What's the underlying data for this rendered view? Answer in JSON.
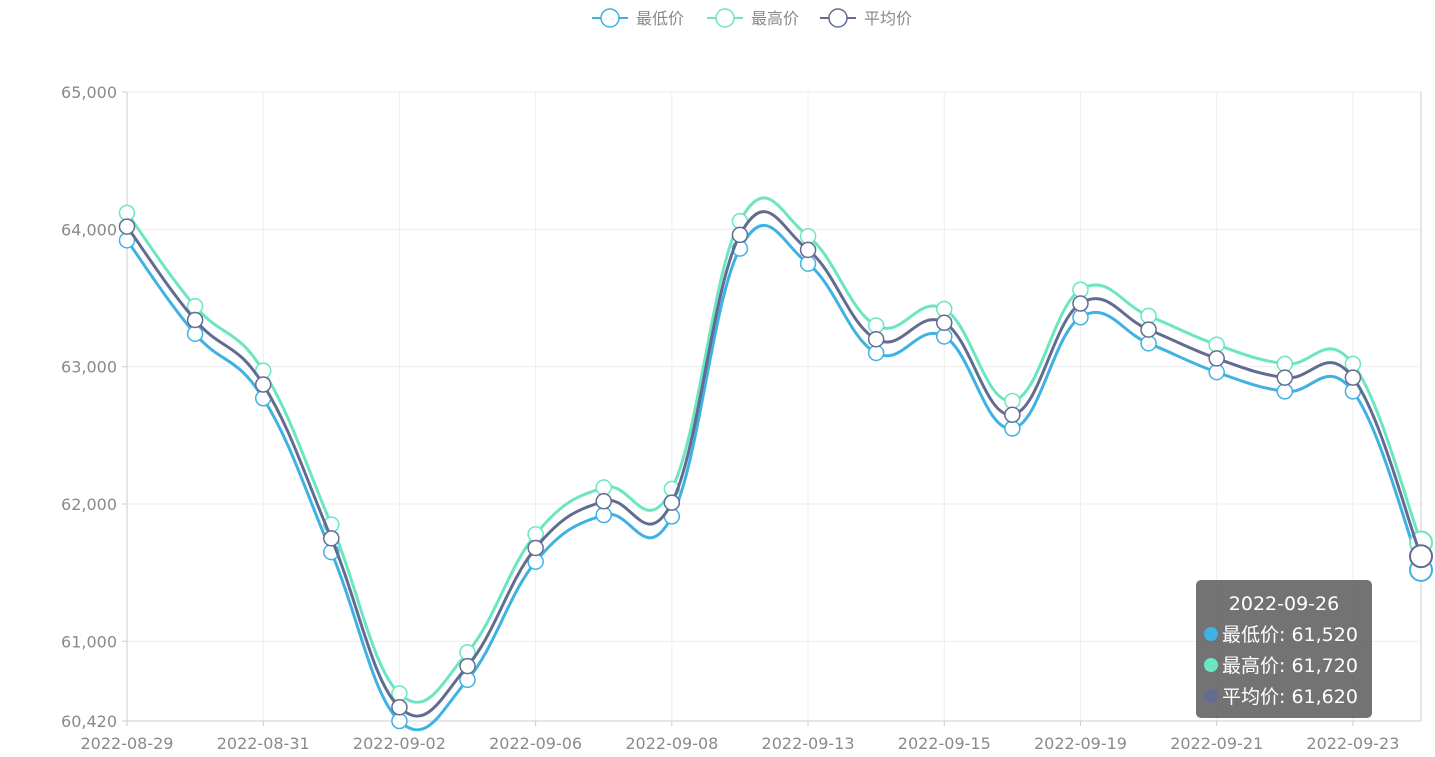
{
  "legend": [
    {
      "name": "最低价",
      "color": "#3fb1e3"
    },
    {
      "name": "最高价",
      "color": "#6be6c1"
    },
    {
      "name": "平均价",
      "color": "#626c91"
    }
  ],
  "chart_data": {
    "type": "line",
    "smooth": true,
    "x": [
      "2022-08-29",
      "2022-08-30",
      "2022-08-31",
      "2022-09-01",
      "2022-09-02",
      "2022-09-05",
      "2022-09-06",
      "2022-09-07",
      "2022-09-08",
      "2022-09-09",
      "2022-09-13",
      "2022-09-14",
      "2022-09-15",
      "2022-09-16",
      "2022-09-19",
      "2022-09-20",
      "2022-09-21",
      "2022-09-22",
      "2022-09-23",
      "2022-09-26"
    ],
    "x_tick_labels": [
      "2022-08-29",
      "2022-08-31",
      "2022-09-02",
      "2022-09-06",
      "2022-09-08",
      "2022-09-13",
      "2022-09-15",
      "2022-09-19",
      "2022-09-21",
      "2022-09-23"
    ],
    "y_tick_labels": [
      "65,000",
      "64,000",
      "63,000",
      "62,000",
      "61,000",
      "60,420"
    ],
    "ylim": [
      60420,
      65000
    ],
    "grid": true,
    "legend_position": "top-center",
    "series": [
      {
        "name": "最低价",
        "color": "#3fb1e3",
        "values": [
          63920,
          63240,
          62770,
          61650,
          60420,
          60720,
          61580,
          61920,
          61910,
          63860,
          63750,
          63100,
          63220,
          62550,
          63360,
          63170,
          62960,
          62820,
          62820,
          61520
        ]
      },
      {
        "name": "最高价",
        "color": "#6be6c1",
        "values": [
          64120,
          63440,
          62970,
          61850,
          60620,
          60920,
          61780,
          62120,
          62110,
          64060,
          63950,
          63300,
          63420,
          62750,
          63560,
          63370,
          63160,
          63020,
          63020,
          61720
        ]
      },
      {
        "name": "平均价",
        "color": "#626c91",
        "values": [
          64020,
          63340,
          62870,
          61750,
          60520,
          60820,
          61680,
          62020,
          62010,
          63960,
          63850,
          63200,
          63320,
          62650,
          63460,
          63270,
          63060,
          62920,
          62920,
          61620
        ]
      }
    ],
    "tooltip": {
      "title": "2022-09-26",
      "rows": [
        {
          "label": "最低价: 61,520",
          "color": "#3fb1e3"
        },
        {
          "label": "最高价: 61,720",
          "color": "#6be6c1"
        },
        {
          "label": "平均价: 61,620",
          "color": "#626c91"
        }
      ]
    }
  }
}
